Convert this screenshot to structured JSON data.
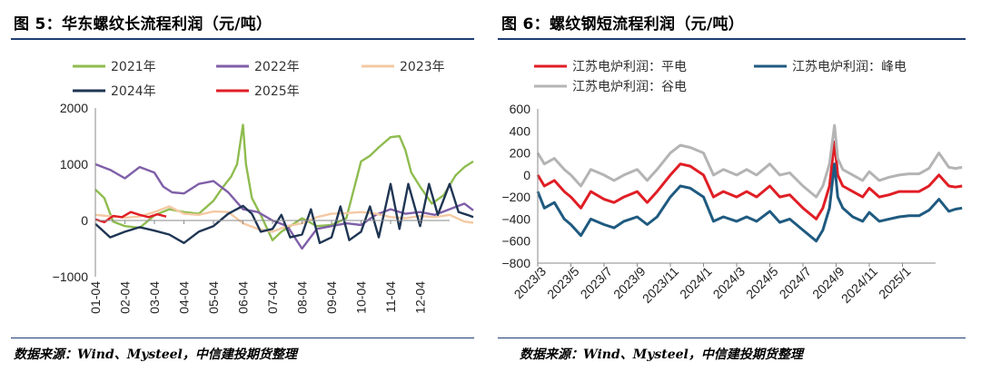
{
  "left_panel": {
    "title": "图 5：华东螺纹长流程利润（元/吨）",
    "source": "数据来源：Wind、Mysteel，中信建投期货整理"
  },
  "right_panel": {
    "title": "图 6：螺纹钢短流程利润（元/吨）",
    "source": "数据来源：Wind、Mysteel，中信建投期货整理"
  },
  "colors": {
    "rule": "#1f3e74",
    "s2021": "#8fbc4f",
    "s2022": "#7f5fa8",
    "s2023": "#f4c9a3",
    "s2024": "#1f3553",
    "s2025": "#e01e25",
    "pingdian": "#e01e25",
    "fengdian": "#1f5a80",
    "gudian": "#b4b4b4"
  },
  "chart_data": [
    {
      "type": "line",
      "ylim": [
        -1000,
        2000
      ],
      "yticks": [
        "2000",
        "1000",
        "0",
        "−1000"
      ],
      "categories": [
        "01-04",
        "02-04",
        "03-04",
        "04-04",
        "05-04",
        "06-04",
        "07-04",
        "08-04",
        "09-04",
        "10-04",
        "11-04",
        "12-04"
      ],
      "series": [
        {
          "name": "2021年",
          "color_key": "s2021",
          "x": [
            0,
            0.3,
            0.6,
            1,
            1.5,
            2,
            2.5,
            3,
            3.5,
            4,
            4.3,
            4.6,
            4.8,
            5,
            5.1,
            5.3,
            5.6,
            6,
            6.3,
            6.6,
            7,
            7.5,
            8,
            8.5,
            9,
            9.3,
            9.6,
            10,
            10.3,
            10.5,
            10.7,
            11,
            11.4,
            11.8,
            12.2,
            12.5,
            12.8
          ],
          "y": [
            550,
            400,
            -20,
            -100,
            -130,
            90,
            200,
            150,
            120,
            350,
            580,
            780,
            1000,
            1700,
            1000,
            400,
            100,
            -350,
            -200,
            -100,
            40,
            -100,
            -80,
            40,
            1050,
            1150,
            1300,
            1480,
            1500,
            1250,
            850,
            600,
            300,
            450,
            800,
            950,
            1050
          ]
        },
        {
          "name": "2022年",
          "color_key": "s2022",
          "x": [
            0,
            0.5,
            1,
            1.5,
            2,
            2.3,
            2.6,
            3,
            3.5,
            4,
            4.5,
            5,
            5.5,
            6,
            6.5,
            7,
            7.5,
            8,
            8.5,
            9,
            9.5,
            10,
            10.5,
            11,
            11.5,
            12,
            12.5,
            12.8
          ],
          "y": [
            1000,
            900,
            750,
            950,
            850,
            600,
            500,
            480,
            650,
            700,
            500,
            200,
            150,
            0,
            -100,
            -500,
            -150,
            -100,
            -50,
            -80,
            100,
            200,
            120,
            150,
            100,
            200,
            300,
            180
          ]
        },
        {
          "name": "2023年",
          "color_key": "s2023",
          "x": [
            0,
            1,
            1.5,
            2,
            2.5,
            3,
            3.5,
            4,
            4.5,
            5,
            5.5,
            6,
            6.5,
            7,
            7.5,
            8,
            8.5,
            9,
            9.5,
            10,
            10.5,
            11,
            11.5,
            12,
            12.5,
            12.8
          ],
          "y": [
            100,
            50,
            70,
            150,
            250,
            120,
            100,
            160,
            150,
            -50,
            -150,
            -200,
            -100,
            -50,
            60,
            120,
            130,
            150,
            120,
            60,
            40,
            80,
            60,
            100,
            -20,
            -40
          ]
        },
        {
          "name": "2024年",
          "color_key": "s2024",
          "x": [
            0,
            0.5,
            1,
            1.5,
            2,
            2.5,
            3,
            3.5,
            4,
            4.5,
            5,
            5.3,
            5.6,
            6,
            6.3,
            6.6,
            7,
            7.3,
            7.6,
            8,
            8.3,
            8.6,
            9,
            9.3,
            9.6,
            10,
            10.3,
            10.6,
            11,
            11.3,
            11.6,
            12,
            12.3,
            12.6,
            12.8
          ],
          "y": [
            -60,
            -300,
            -200,
            -120,
            -180,
            -250,
            -400,
            -200,
            -100,
            120,
            260,
            120,
            -200,
            -150,
            100,
            -300,
            -250,
            200,
            -400,
            -300,
            250,
            -350,
            -200,
            250,
            -300,
            650,
            -150,
            650,
            -100,
            650,
            100,
            650,
            150,
            100,
            60
          ]
        },
        {
          "name": "2025年",
          "color_key": "s2025",
          "x": [
            0,
            0.3,
            0.6,
            0.9,
            1.2,
            1.5,
            1.8,
            2.1,
            2.4
          ],
          "y": [
            20,
            -30,
            80,
            60,
            150,
            100,
            60,
            110,
            70
          ]
        }
      ]
    },
    {
      "type": "line",
      "ylim": [
        -800,
        600
      ],
      "yticks": [
        "600",
        "400",
        "200",
        "0",
        "−200",
        "−400",
        "−600",
        "−800"
      ],
      "categories": [
        "2023/3",
        "2023/5",
        "2023/7",
        "2023/9",
        "2023/11",
        "2024/1",
        "2024/3",
        "2024/5",
        "2024/7",
        "2024/9",
        "2024/11",
        "2025/1"
      ],
      "series": [
        {
          "name": "江苏电炉利润：平电",
          "color_key": "pingdian",
          "x": [
            0,
            0.2,
            0.5,
            0.8,
            1,
            1.3,
            1.6,
            2,
            2.3,
            2.6,
            3,
            3.3,
            3.6,
            4,
            4.3,
            4.6,
            5,
            5.3,
            5.6,
            6,
            6.3,
            6.6,
            7,
            7.3,
            7.6,
            8,
            8.2,
            8.4,
            8.6,
            8.8,
            8.95,
            9.05,
            9.2,
            9.5,
            9.8,
            10,
            10.3,
            10.6,
            10.9,
            11.2,
            11.5,
            11.8,
            12.1,
            12.4,
            12.6,
            12.8
          ],
          "y": [
            0,
            -100,
            -50,
            -150,
            -200,
            -300,
            -150,
            -220,
            -250,
            -200,
            -150,
            -250,
            -150,
            0,
            100,
            80,
            0,
            -200,
            -150,
            -200,
            -150,
            -200,
            -100,
            -200,
            -180,
            -300,
            -350,
            -400,
            -300,
            -100,
            300,
            0,
            -100,
            -150,
            -200,
            -120,
            -200,
            -180,
            -150,
            -150,
            -150,
            -100,
            0,
            -100,
            -110,
            -100
          ]
        },
        {
          "name": "江苏电炉利润：峰电",
          "color_key": "fengdian",
          "x": [
            0,
            0.2,
            0.5,
            0.8,
            1,
            1.3,
            1.6,
            2,
            2.3,
            2.6,
            3,
            3.3,
            3.6,
            4,
            4.3,
            4.6,
            5,
            5.3,
            5.6,
            6,
            6.3,
            6.6,
            7,
            7.3,
            7.6,
            8,
            8.2,
            8.4,
            8.6,
            8.8,
            8.95,
            9.05,
            9.2,
            9.5,
            9.8,
            10,
            10.3,
            10.6,
            10.9,
            11.2,
            11.5,
            11.8,
            12.1,
            12.4,
            12.6,
            12.8
          ],
          "y": [
            -150,
            -300,
            -250,
            -400,
            -450,
            -550,
            -400,
            -450,
            -480,
            -420,
            -380,
            -450,
            -380,
            -200,
            -100,
            -120,
            -200,
            -420,
            -380,
            -420,
            -380,
            -420,
            -330,
            -430,
            -400,
            -500,
            -550,
            -600,
            -500,
            -300,
            100,
            -200,
            -300,
            -380,
            -420,
            -340,
            -420,
            -400,
            -380,
            -370,
            -370,
            -320,
            -220,
            -330,
            -310,
            -300
          ]
        },
        {
          "name": "江苏电炉利润：谷电",
          "color_key": "gudian",
          "x": [
            0,
            0.2,
            0.5,
            0.8,
            1,
            1.3,
            1.6,
            2,
            2.3,
            2.6,
            3,
            3.3,
            3.6,
            4,
            4.3,
            4.6,
            5,
            5.3,
            5.6,
            6,
            6.3,
            6.6,
            7,
            7.3,
            7.6,
            8,
            8.2,
            8.4,
            8.6,
            8.8,
            8.95,
            9.05,
            9.2,
            9.5,
            9.8,
            10,
            10.3,
            10.6,
            10.9,
            11.2,
            11.5,
            11.8,
            12.1,
            12.4,
            12.6,
            12.8
          ],
          "y": [
            200,
            100,
            150,
            50,
            0,
            -100,
            50,
            0,
            -50,
            0,
            50,
            -50,
            50,
            200,
            270,
            250,
            200,
            0,
            50,
            0,
            50,
            0,
            100,
            0,
            20,
            -100,
            -150,
            -200,
            -100,
            100,
            450,
            150,
            50,
            0,
            -50,
            30,
            -50,
            -20,
            0,
            10,
            10,
            60,
            200,
            70,
            60,
            70
          ]
        }
      ]
    }
  ]
}
